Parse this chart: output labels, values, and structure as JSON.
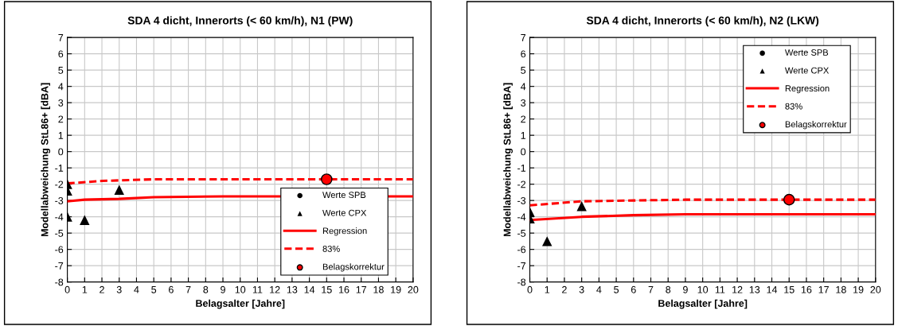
{
  "chart_data": [
    {
      "type": "scatter",
      "title": "SDA 4 dicht, Innerorts (< 60 km/h), N1 (PW)",
      "xlabel": "Belagsalter [Jahre]",
      "ylabel": "Modellabweichung StL86+ [dBA]",
      "xlim": [
        0,
        20
      ],
      "ylim": [
        -8,
        7
      ],
      "xticks": [
        0,
        1,
        2,
        3,
        4,
        5,
        6,
        7,
        8,
        9,
        10,
        11,
        12,
        13,
        14,
        15,
        16,
        17,
        18,
        19,
        20
      ],
      "yticks": [
        -8,
        -7,
        -6,
        -5,
        -4,
        -3,
        -2,
        -1,
        0,
        1,
        2,
        3,
        4,
        5,
        6,
        7
      ],
      "grid": true,
      "legend": "bottom right",
      "series": [
        {
          "name": "Werte SPB",
          "marker": "circle",
          "color": "#000000"
        },
        {
          "name": "Werte CPX",
          "marker": "triangle",
          "color": "#000000",
          "x": [
            0,
            0,
            0,
            1,
            3
          ],
          "values": [
            -2.0,
            -2.4,
            -4.0,
            -4.2,
            -2.35
          ]
        },
        {
          "name": "Regression",
          "type": "line",
          "line_style": "solid",
          "color": "#ff0000",
          "x": [
            0,
            1,
            3,
            5,
            9,
            20
          ],
          "values": [
            -3.05,
            -2.95,
            -2.9,
            -2.8,
            -2.75,
            -2.75
          ]
        },
        {
          "name": "83%",
          "type": "line",
          "line_style": "dashed",
          "color": "#ff0000",
          "x": [
            0,
            2,
            5,
            9,
            20
          ],
          "values": [
            -1.95,
            -1.8,
            -1.7,
            -1.7,
            -1.7
          ]
        },
        {
          "name": "Belagskorrektur",
          "marker": "circle",
          "color": "#ff0000",
          "x": [
            15
          ],
          "values": [
            -1.7
          ]
        }
      ]
    },
    {
      "type": "scatter",
      "title": "SDA 4 dicht, Innerorts (< 60 km/h), N2 (LKW)",
      "xlabel": "Belagsalter [Jahre]",
      "ylabel": "Modellabweichung StL86+ [dBA]",
      "xlim": [
        0,
        20
      ],
      "ylim": [
        -8,
        7
      ],
      "xticks": [
        0,
        1,
        2,
        3,
        4,
        5,
        6,
        7,
        8,
        9,
        10,
        11,
        12,
        13,
        14,
        15,
        16,
        17,
        18,
        19,
        20
      ],
      "yticks": [
        -8,
        -7,
        -6,
        -5,
        -4,
        -3,
        -2,
        -1,
        0,
        1,
        2,
        3,
        4,
        5,
        6,
        7
      ],
      "grid": true,
      "legend": "top right",
      "series": [
        {
          "name": "Werte SPB",
          "marker": "circle",
          "color": "#000000"
        },
        {
          "name": "Werte CPX",
          "marker": "triangle",
          "color": "#000000",
          "x": [
            0,
            0,
            1,
            3
          ],
          "values": [
            -3.7,
            -4.1,
            -5.5,
            -3.35
          ]
        },
        {
          "name": "Regression",
          "type": "line",
          "line_style": "solid",
          "color": "#ff0000",
          "x": [
            0,
            3,
            6,
            9,
            20
          ],
          "values": [
            -4.2,
            -4.0,
            -3.9,
            -3.85,
            -3.85
          ]
        },
        {
          "name": "83%",
          "type": "line",
          "line_style": "dashed",
          "color": "#ff0000",
          "x": [
            0,
            3,
            6,
            9,
            20
          ],
          "values": [
            -3.3,
            -3.05,
            -3.0,
            -2.95,
            -2.95
          ]
        },
        {
          "name": "Belagskorrektur",
          "marker": "circle",
          "color": "#ff0000",
          "x": [
            15
          ],
          "values": [
            -2.95
          ]
        }
      ]
    }
  ]
}
